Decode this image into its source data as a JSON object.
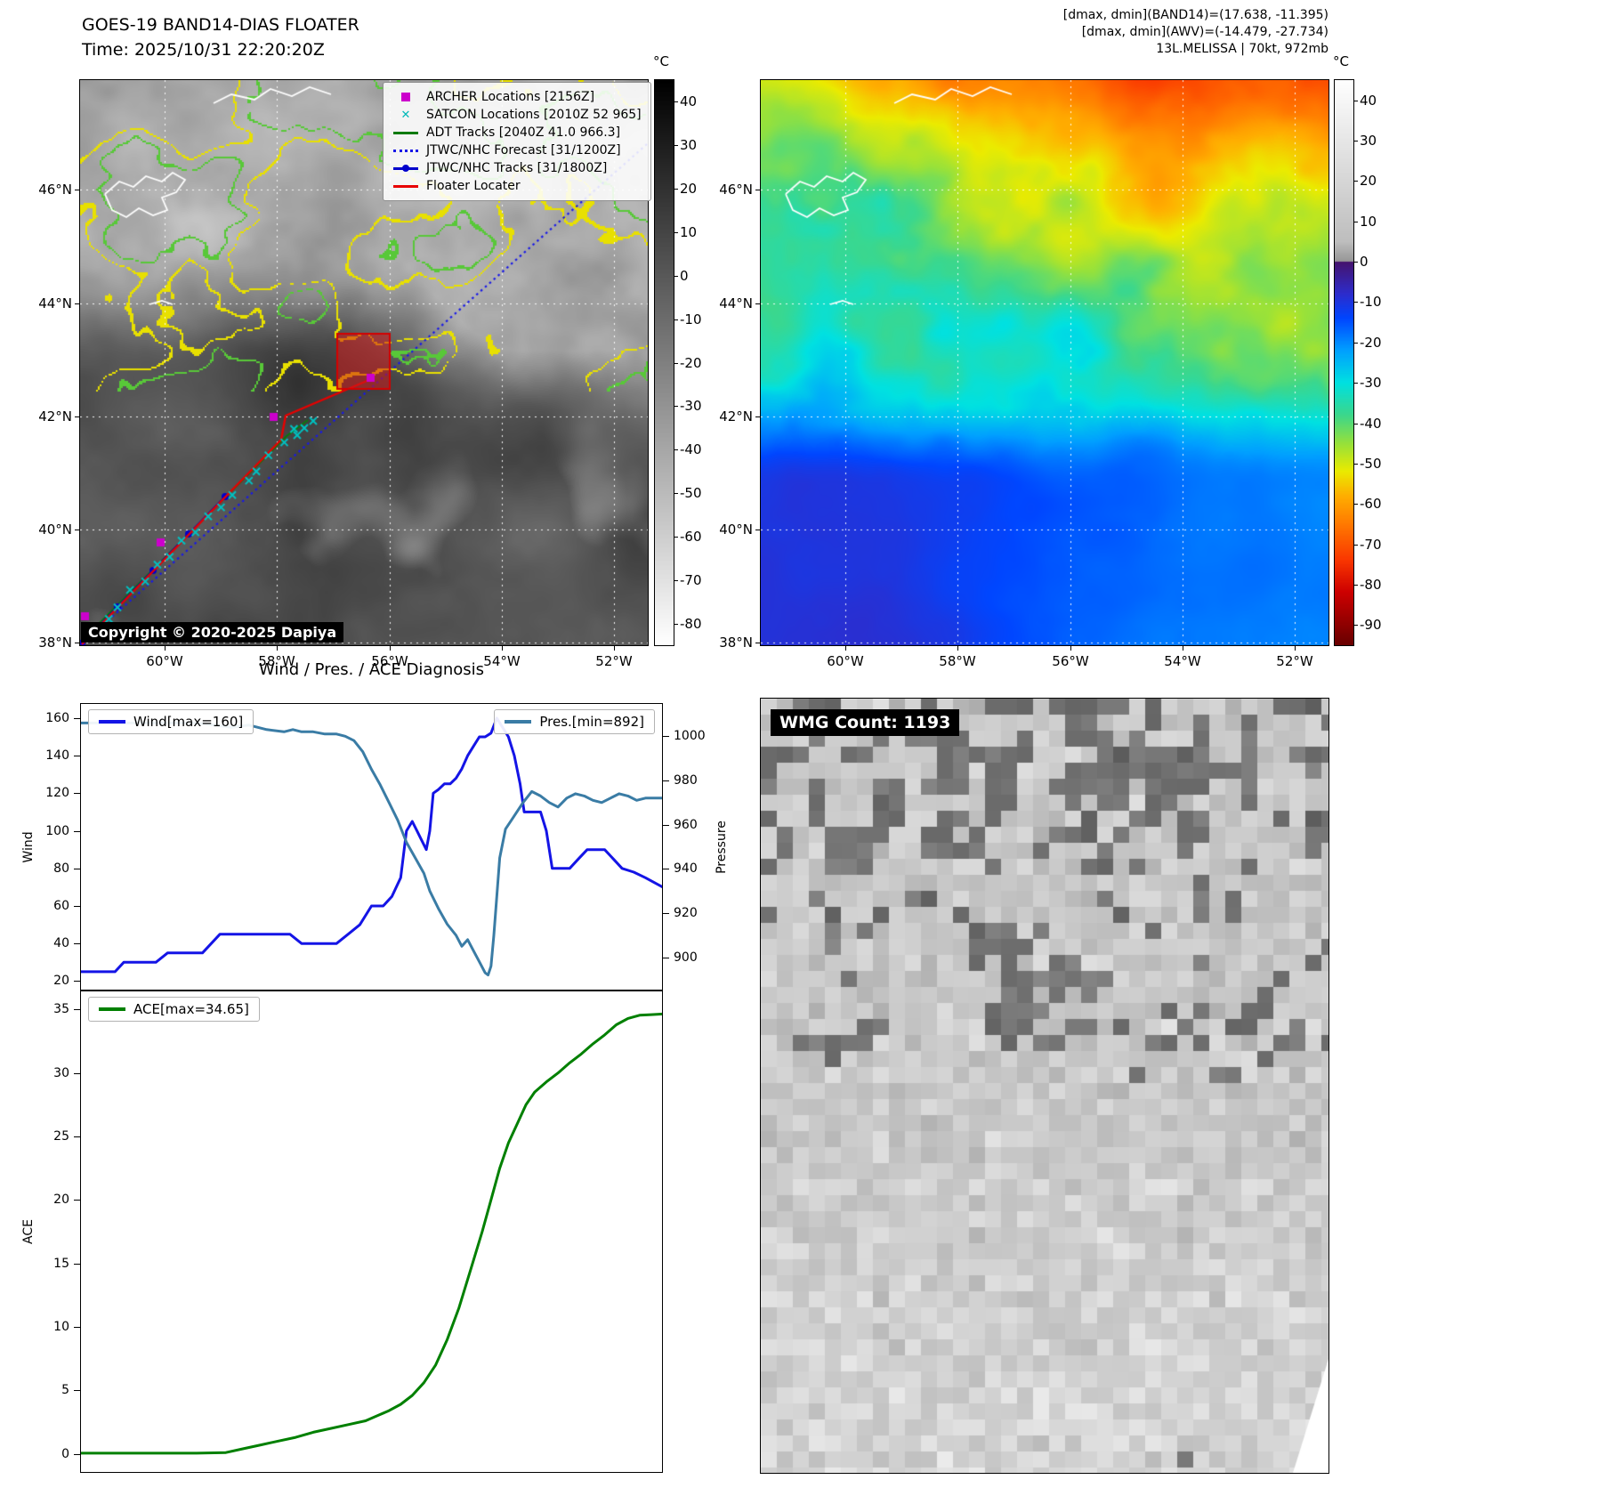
{
  "band14": {
    "title_line1": "GOES-19 BAND14-DIAS FLOATER",
    "title_line2": "Time: 2025/10/31 22:20:20Z",
    "copyright": "Copyright © 2020-2025 Dapiya",
    "colorbar": {
      "unit": "°C",
      "max": 45,
      "min": -85,
      "ticks": [
        40,
        30,
        20,
        10,
        0,
        -10,
        -20,
        -30,
        -40,
        -50,
        -60,
        -70,
        -80
      ]
    },
    "legend": [
      {
        "label": "ARCHER Locations [2156Z]",
        "marker": "square",
        "color": "#cc00cc"
      },
      {
        "label": "SATCON Locations [2010Z 52 965]",
        "marker": "x",
        "color": "#00b8b8"
      },
      {
        "label": "ADT Tracks [2040Z 41.0 966.3]",
        "marker": "line",
        "color": "#0a7a0a"
      },
      {
        "label": "JTWC/NHC Forecast [31/1200Z]",
        "marker": "dotted-line",
        "color": "#1818e8"
      },
      {
        "label": "JTWC/NHC Tracks [31/1800Z]",
        "marker": "line-dot",
        "color": "#0000cc"
      },
      {
        "label": "Floater Locater",
        "marker": "line",
        "color": "#e80000"
      }
    ]
  },
  "awv": {
    "title_line1": "[dmax, dmin](BAND14)=(17.638, -11.395)",
    "title_line2": "[dmax, dmin](AWV)=(-14.479, -27.734)",
    "title_line3": "13L.MELISSA | 70kt, 972mb",
    "colorbar": {
      "unit": "°C",
      "max": 45,
      "min": -95,
      "ticks": [
        40,
        30,
        20,
        10,
        0,
        -10,
        -20,
        -30,
        -40,
        -50,
        -60,
        -70,
        -80,
        -90
      ]
    }
  },
  "map_axes": {
    "x_tick_labels": [
      "60°W",
      "58°W",
      "56°W",
      "54°W",
      "52°W"
    ],
    "y_tick_labels": [
      "46°N",
      "44°N",
      "42°N",
      "40°N",
      "38°N"
    ]
  },
  "diagnosis": {
    "title": "Wind / Pres. / ACE Diagnosis"
  },
  "wmg": {
    "label": "WMG Count: 1193"
  },
  "chart_data": [
    {
      "type": "line",
      "panel": "wind-pressure",
      "title": "Wind / Pres. / ACE Diagnosis",
      "x_range": [
        0,
        1
      ],
      "axes": {
        "left": {
          "label": "Wind",
          "lim": [
            15,
            168
          ],
          "ticks": [
            20,
            40,
            60,
            80,
            100,
            120,
            140,
            160
          ]
        },
        "right": {
          "label": "Pressure",
          "lim": [
            885,
            1015
          ],
          "ticks": [
            900,
            920,
            940,
            960,
            980,
            1000
          ]
        }
      },
      "series": [
        {
          "name": "Wind[max=160]",
          "axis": "left",
          "color": "#1414e6",
          "legend_pos": "nw",
          "x": [
            0,
            0.02,
            0.04,
            0.06,
            0.075,
            0.09,
            0.11,
            0.13,
            0.15,
            0.17,
            0.19,
            0.21,
            0.225,
            0.24,
            0.27,
            0.3,
            0.33,
            0.36,
            0.38,
            0.4,
            0.42,
            0.44,
            0.46,
            0.48,
            0.5,
            0.52,
            0.535,
            0.55,
            0.56,
            0.57,
            0.578,
            0.586,
            0.594,
            0.6,
            0.606,
            0.615,
            0.625,
            0.635,
            0.645,
            0.655,
            0.665,
            0.675,
            0.685,
            0.695,
            0.705,
            0.715,
            0.725,
            0.735,
            0.745,
            0.755,
            0.762,
            0.775,
            0.79,
            0.8,
            0.81,
            0.825,
            0.84,
            0.855,
            0.87,
            0.885,
            0.9,
            0.915,
            0.93,
            0.95,
            0.97,
            1.0
          ],
          "y": [
            25,
            25,
            25,
            25,
            30,
            30,
            30,
            30,
            35,
            35,
            35,
            35,
            40,
            45,
            45,
            45,
            45,
            45,
            40,
            40,
            40,
            40,
            45,
            50,
            60,
            60,
            65,
            75,
            100,
            105,
            100,
            95,
            90,
            100,
            120,
            122,
            125,
            125,
            128,
            133,
            140,
            145,
            150,
            150,
            152,
            160,
            155,
            150,
            140,
            125,
            110,
            110,
            110,
            100,
            80,
            80,
            80,
            85,
            90,
            90,
            90,
            85,
            80,
            78,
            75,
            70
          ]
        },
        {
          "name": "Pres.[min=892]",
          "axis": "right",
          "color": "#3a7ca5",
          "legend_pos": "ne",
          "x": [
            0,
            0.05,
            0.1,
            0.15,
            0.2,
            0.23,
            0.26,
            0.29,
            0.32,
            0.35,
            0.365,
            0.38,
            0.4,
            0.42,
            0.44,
            0.455,
            0.47,
            0.485,
            0.5,
            0.515,
            0.53,
            0.545,
            0.56,
            0.575,
            0.59,
            0.6,
            0.615,
            0.63,
            0.645,
            0.655,
            0.665,
            0.675,
            0.685,
            0.695,
            0.7,
            0.705,
            0.71,
            0.72,
            0.73,
            0.74,
            0.75,
            0.76,
            0.775,
            0.79,
            0.805,
            0.82,
            0.835,
            0.85,
            0.865,
            0.88,
            0.895,
            0.91,
            0.925,
            0.94,
            0.955,
            0.97,
            1.0
          ],
          "y": [
            1006,
            1006,
            1006,
            1006,
            1006,
            1005,
            1004,
            1005,
            1003,
            1002,
            1003,
            1002,
            1002,
            1001,
            1001,
            1000,
            998,
            993,
            985,
            978,
            970,
            962,
            952,
            945,
            938,
            930,
            922,
            915,
            910,
            905,
            908,
            903,
            898,
            893,
            892,
            896,
            910,
            945,
            958,
            962,
            966,
            970,
            975,
            973,
            970,
            968,
            972,
            974,
            973,
            971,
            970,
            972,
            974,
            973,
            971,
            972,
            972
          ]
        }
      ]
    },
    {
      "type": "line",
      "panel": "ace",
      "x_range": [
        0,
        1
      ],
      "axes": {
        "left": {
          "label": "ACE",
          "lim": [
            -1.5,
            36.5
          ],
          "ticks": [
            0,
            5,
            10,
            15,
            20,
            25,
            30,
            35
          ]
        }
      },
      "series": [
        {
          "name": "ACE[max=34.65]",
          "axis": "left",
          "color": "#008000",
          "legend_pos": "nw",
          "x": [
            0,
            0.05,
            0.1,
            0.15,
            0.2,
            0.25,
            0.28,
            0.31,
            0.34,
            0.37,
            0.4,
            0.43,
            0.46,
            0.49,
            0.51,
            0.53,
            0.55,
            0.57,
            0.59,
            0.61,
            0.63,
            0.65,
            0.67,
            0.69,
            0.705,
            0.72,
            0.735,
            0.75,
            0.765,
            0.78,
            0.8,
            0.82,
            0.84,
            0.86,
            0.88,
            0.9,
            0.92,
            0.94,
            0.96,
            0.98,
            1.0
          ],
          "y": [
            0.05,
            0.05,
            0.05,
            0.05,
            0.05,
            0.1,
            0.4,
            0.7,
            1.0,
            1.3,
            1.7,
            2.0,
            2.3,
            2.6,
            3.0,
            3.4,
            3.9,
            4.6,
            5.6,
            7.0,
            9.0,
            11.5,
            14.5,
            17.5,
            20.0,
            22.5,
            24.5,
            26.0,
            27.5,
            28.5,
            29.3,
            30.0,
            30.8,
            31.5,
            32.3,
            33.0,
            33.8,
            34.3,
            34.55,
            34.6,
            34.65
          ]
        }
      ]
    }
  ]
}
